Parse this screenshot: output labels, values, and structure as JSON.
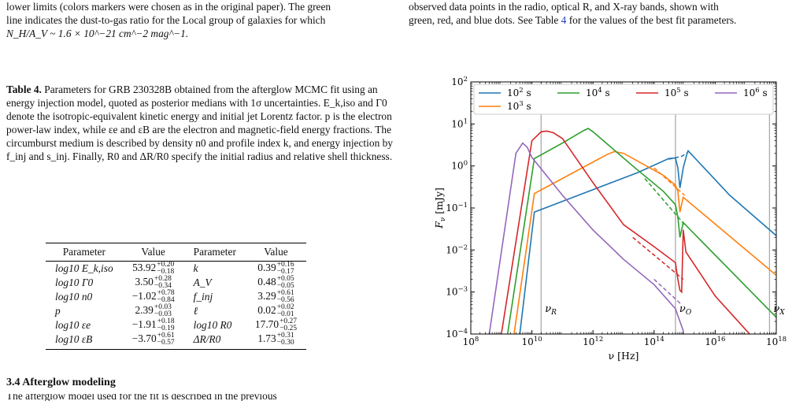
{
  "left_column": {
    "top_text": "lower limits (colors markers were chosen as in the original paper). The green line indicates the dust-to-gas ratio for the Local group of galaxies for which N_H/A_V ~ 1.6 × 10^-21 cm^-2 mag^-1.",
    "top_line1": "lower limits (colors markers were chosen as in the original paper). The green",
    "top_line2": "line indicates the dust-to-gas ratio for the Local group of galaxies for which",
    "top_line3": "N_H/A_V ~ 1.6 × 10^−21 cm^−2 mag^−1.",
    "table_caption_label": "Table 4.",
    "table_caption": "Parameters for GRB 230328B obtained from the afterglow MCMC fit using an energy injection model, quoted as posterior medians with 1σ uncertainties. E_k,iso and Γ0 denote the isotropic-equivalent kinetic energy and initial jet Lorentz factor. p is the electron power-law index, while εe and εB are the electron and magnetic-field energy fractions. The circumburst medium is described by density n0 and profile index k, and energy injection by f_inj and s_inj. Finally, R0 and ΔR/R0 specify the initial radius and relative shell thickness.",
    "section_heading": "3.4 Afterglow modeling",
    "cut_text": "The afterglow model used for the fit is described in the previous"
  },
  "right_column": {
    "top_line1": "observed data points in the radio, optical R, and X-ray bands, shown with",
    "top_line2_pre": "green, red, and blue dots. See Table ",
    "table_ref": "4",
    "top_line2_post": " for the values of the best fit parameters."
  },
  "table": {
    "headers": [
      "Parameter",
      "Value",
      "Parameter",
      "Value"
    ],
    "rows": [
      {
        "p1": "log10 E_k,iso",
        "v1": "53.92",
        "v1_up": "+0.20",
        "v1_lo": "−0.18",
        "p2": "k",
        "v2": "0.39",
        "v2_up": "+0.16",
        "v2_lo": "−0.17"
      },
      {
        "p1": "log10 Γ0",
        "v1": "3.50",
        "v1_up": "+0.28",
        "v1_lo": "−0.34",
        "p2": "A_V",
        "v2": "0.48",
        "v2_up": "+0.05",
        "v2_lo": "−0.05"
      },
      {
        "p1": "log10 n0",
        "v1": "−1.02",
        "v1_up": "+0.78",
        "v1_lo": "−0.84",
        "p2": "f_inj",
        "v2": "3.29",
        "v2_up": "+0.61",
        "v2_lo": "−0.56"
      },
      {
        "p1": "p",
        "v1": "2.39",
        "v1_up": "+0.03",
        "v1_lo": "−0.03",
        "p2": "ℓ",
        "v2": "0.02",
        "v2_up": "+0.02",
        "v2_lo": "−0.01"
      },
      {
        "p1": "log10 εe",
        "v1": "−1.91",
        "v1_up": "+0.18",
        "v1_lo": "−0.19",
        "p2": "log10 R0",
        "v2": "17.70",
        "v2_up": "+0.27",
        "v2_lo": "−0.25"
      },
      {
        "p1": "log10 εB",
        "v1": "−3.70",
        "v1_up": "+0.61",
        "v1_lo": "−0.57",
        "p2": "ΔR/R0",
        "v2": "1.73",
        "v2_up": "+0.31",
        "v2_lo": "−0.30"
      }
    ]
  },
  "chart_data": {
    "type": "line",
    "xlabel": "ν [Hz]",
    "ylabel": "F_ν [mJy]",
    "xscale": "log",
    "yscale": "log",
    "xlim": [
      100000000.0,
      1e+18
    ],
    "ylim": [
      0.0001,
      100.0
    ],
    "x_ticks": [
      "10^8",
      "10^10",
      "10^12",
      "10^14",
      "10^16",
      "10^18"
    ],
    "y_ticks": [
      "10^-4",
      "10^-3",
      "10^-2",
      "10^-1",
      "10^0",
      "10^1",
      "10^2"
    ],
    "grid": false,
    "legend_position": "top",
    "band_markers": [
      {
        "label": "ν_R",
        "x": 20000000000.0
      },
      {
        "label": "ν_O",
        "x": 500000000000000.0
      },
      {
        "label": "ν_X",
        "x": 6e+17
      }
    ],
    "series": [
      {
        "name": "10^2 s",
        "color": "#1f77b4",
        "points": [
          [
            4000000000.0,
            0.0001
          ],
          [
            12000000000.0,
            0.08
          ],
          [
            30000000000000.0,
            0.7
          ],
          [
            300000000000000.0,
            1.5
          ],
          [
            500000000000000.0,
            1.55
          ],
          [
            600000000000000.0,
            0.9
          ],
          [
            700000000000000.0,
            0.3
          ],
          [
            900000000000000.0,
            0.9
          ],
          [
            1200000000000000.0,
            2.0
          ],
          [
            1300000000000000.0,
            2.3
          ],
          [
            3e+16,
            0.2
          ],
          [
            1e+18,
            0.022
          ]
        ],
        "dashed": [
          [
            300000000000000.0,
            1.45
          ],
          [
            800000000000000.0,
            1.7
          ],
          [
            1300000000000000.0,
            2.1
          ]
        ]
      },
      {
        "name": "10^3 s",
        "color": "#ff7f0e",
        "points": [
          [
            2600000000.0,
            0.0001
          ],
          [
            12000000000.0,
            0.22
          ],
          [
            3000000000000.0,
            1.9
          ],
          [
            5000000000000.0,
            2.2
          ],
          [
            10000000000000.0,
            2.0
          ],
          [
            200000000000000.0,
            0.6
          ],
          [
            500000000000000.0,
            0.35
          ],
          [
            600000000000000.0,
            0.25
          ],
          [
            700000000000000.0,
            0.08
          ],
          [
            900000000000000.0,
            0.18
          ],
          [
            1e+18,
            0.0025
          ]
        ],
        "dashed": [
          [
            100000000000000.0,
            0.9
          ],
          [
            1000000000000000.0,
            0.2
          ]
        ]
      },
      {
        "name": "10^4 s",
        "color": "#2ca02c",
        "points": [
          [
            1600000000.0,
            0.0001
          ],
          [
            12000000000.0,
            1.5
          ],
          [
            100000000000.0,
            3.5
          ],
          [
            500000000000.0,
            7.0
          ],
          [
            700000000000.0,
            7.8
          ],
          [
            1000000000000.0,
            6.5
          ],
          [
            20000000000000.0,
            1.0
          ],
          [
            200000000000000.0,
            0.25
          ],
          [
            500000000000000.0,
            0.12
          ],
          [
            600000000000000.0,
            0.06
          ],
          [
            700000000000000.0,
            0.02
          ],
          [
            900000000000000.0,
            0.045
          ],
          [
            1e+18,
            0.00025
          ]
        ],
        "dashed": [
          [
            50000000000000.0,
            0.5
          ],
          [
            1000000000000000.0,
            0.04
          ]
        ]
      },
      {
        "name": "10^5 s",
        "color": "#d62728",
        "points": [
          [
            1000000000.0,
            0.0001
          ],
          [
            10000000000.0,
            4.0
          ],
          [
            20000000000.0,
            6.5
          ],
          [
            30000000000.0,
            6.8
          ],
          [
            50000000000.0,
            6.2
          ],
          [
            100000000000.0,
            4.5
          ],
          [
            1000000000000.0,
            0.4
          ],
          [
            10000000000000.0,
            0.04
          ],
          [
            100000000000000.0,
            0.012
          ],
          [
            500000000000000.0,
            0.005
          ],
          [
            600000000000000.0,
            0.002
          ],
          [
            700000000000000.0,
            0.0011
          ],
          [
            800000000000000.0,
            0.001
          ],
          [
            900000000000000.0,
            0.03
          ],
          [
            1100000000000000.0,
            0.009
          ],
          [
            1e+16,
            0.0008
          ],
          [
            1e+18,
            2e-05
          ]
        ],
        "dashed": [
          [
            20000000000000.0,
            0.02
          ],
          [
            900000000000000.0,
            0.002
          ]
        ]
      },
      {
        "name": "10^6 s",
        "color": "#9467bd",
        "points": [
          [
            400000000.0,
            0.0001
          ],
          [
            3000000000.0,
            2.0
          ],
          [
            5000000000.0,
            3.5
          ],
          [
            7000000000.0,
            2.8
          ],
          [
            10000000000.0,
            1.6
          ],
          [
            100000000000.0,
            0.2
          ],
          [
            1000000000000.0,
            0.03
          ],
          [
            10000000000000.0,
            0.006
          ],
          [
            100000000000000.0,
            0.0015
          ],
          [
            500000000000000.0,
            0.0004
          ],
          [
            900000000000000.0,
            0.00012
          ],
          [
            1000000000000000.0,
            1e-05
          ]
        ],
        "dashed": [
          [
            100000000000000.0,
            0.002
          ],
          [
            800000000000000.0,
            0.0005
          ]
        ]
      }
    ]
  }
}
